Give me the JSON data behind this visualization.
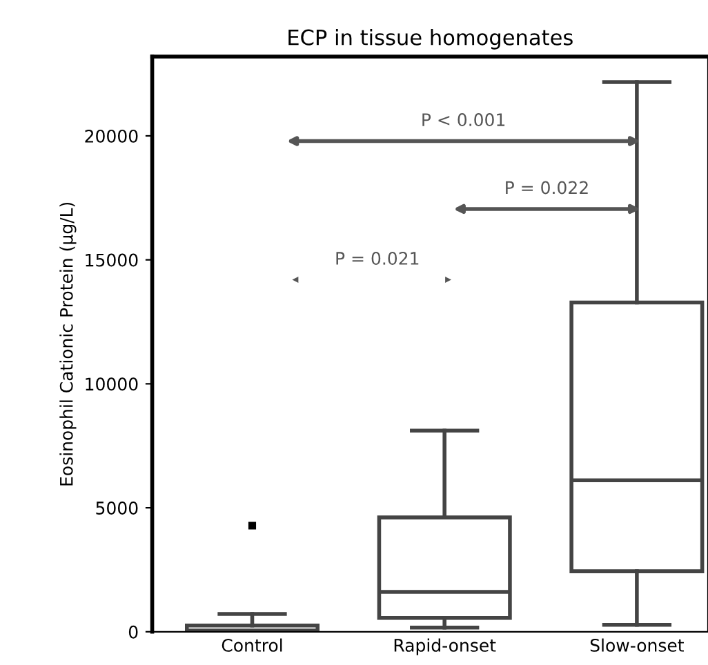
{
  "chart_data": {
    "type": "box",
    "title": "ECP in tissue homogenates",
    "ylabel": "Eosinophil Cationic Protein (µg/L)",
    "categories": [
      "Control",
      "Rapid-onset",
      "Slow-onset"
    ],
    "boxes": [
      {
        "low": 0,
        "q1": 0,
        "median": 50,
        "q3": 250,
        "high": 720,
        "outliers": [
          4280
        ]
      },
      {
        "low": 170,
        "q1": 560,
        "median": 1610,
        "q3": 4610,
        "high": 8110
      },
      {
        "low": 280,
        "q1": 2440,
        "median": 6110,
        "q3": 13280,
        "high": 22170
      }
    ],
    "color": "#444444",
    "ylim": [
      0,
      23200
    ],
    "yticks": [
      0,
      5000,
      10000,
      15000,
      20000
    ],
    "annotations": [
      "P < 0.001",
      "P = 0.022",
      "P = 0.021"
    ],
    "grid": false
  }
}
